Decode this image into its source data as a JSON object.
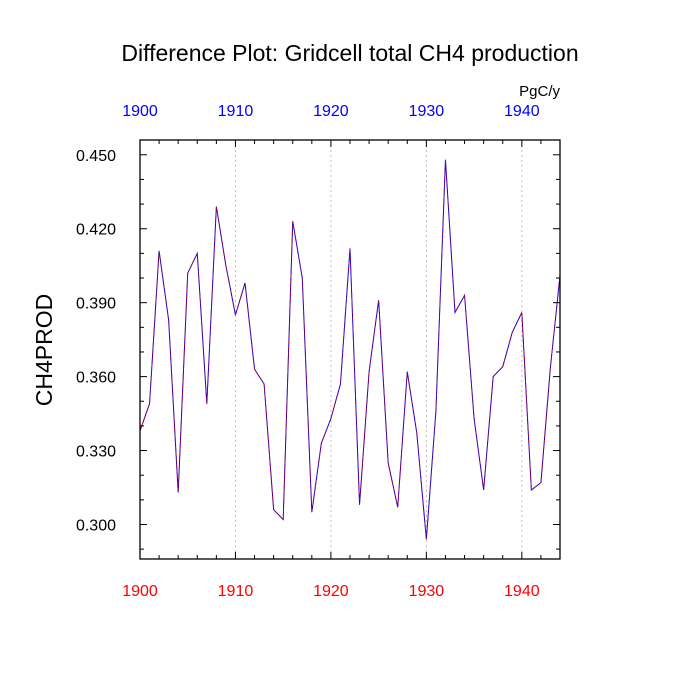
{
  "chart_data": {
    "type": "line",
    "title": "Difference Plot: Gridcell total CH4 production",
    "units": "PgC/y",
    "xlabel": "",
    "ylabel": "CH4PROD",
    "xlim": [
      1900,
      1944
    ],
    "ylim": [
      0.286,
      0.456
    ],
    "grid": "vertical dashed lines at major x ticks",
    "x_ticks": [
      1900,
      1910,
      1920,
      1930,
      1940
    ],
    "x_tick_labels": [
      "1900",
      "1910",
      "1920",
      "1930",
      "1940"
    ],
    "y_ticks": [
      0.3,
      0.33,
      0.36,
      0.39,
      0.42,
      0.45
    ],
    "y_tick_labels": [
      "0.300",
      "0.330",
      "0.360",
      "0.390",
      "0.420",
      "0.450"
    ],
    "x": [
      1900,
      1901,
      1902,
      1903,
      1904,
      1905,
      1906,
      1907,
      1908,
      1909,
      1910,
      1911,
      1912,
      1913,
      1914,
      1915,
      1916,
      1917,
      1918,
      1919,
      1920,
      1921,
      1922,
      1923,
      1924,
      1925,
      1926,
      1927,
      1928,
      1929,
      1930,
      1931,
      1932,
      1933,
      1934,
      1935,
      1936,
      1937,
      1938,
      1939,
      1940,
      1941,
      1942,
      1943,
      1944
    ],
    "series": [
      {
        "values": [
          0.338,
          0.349,
          0.411,
          0.383,
          0.313,
          0.402,
          0.41,
          0.349,
          0.429,
          0.405,
          0.385,
          0.398,
          0.363,
          0.357,
          0.306,
          0.302,
          0.423,
          0.4,
          0.305,
          0.333,
          0.343,
          0.357,
          0.412,
          0.308,
          0.362,
          0.391,
          0.325,
          0.307,
          0.362,
          0.337,
          0.294,
          0.346,
          0.448,
          0.386,
          0.393,
          0.343,
          0.314,
          0.36,
          0.364,
          0.378,
          0.386,
          0.314,
          0.317,
          0.364,
          0.401
        ]
      }
    ],
    "colors": {
      "line_primary": "#0000ff",
      "line_secondary": "#cc0000",
      "top_tick_labels": "#0000ff",
      "bottom_tick_labels": "#ff0000",
      "left_tick_labels": "#000000",
      "grid": "#b0b0b0"
    }
  }
}
